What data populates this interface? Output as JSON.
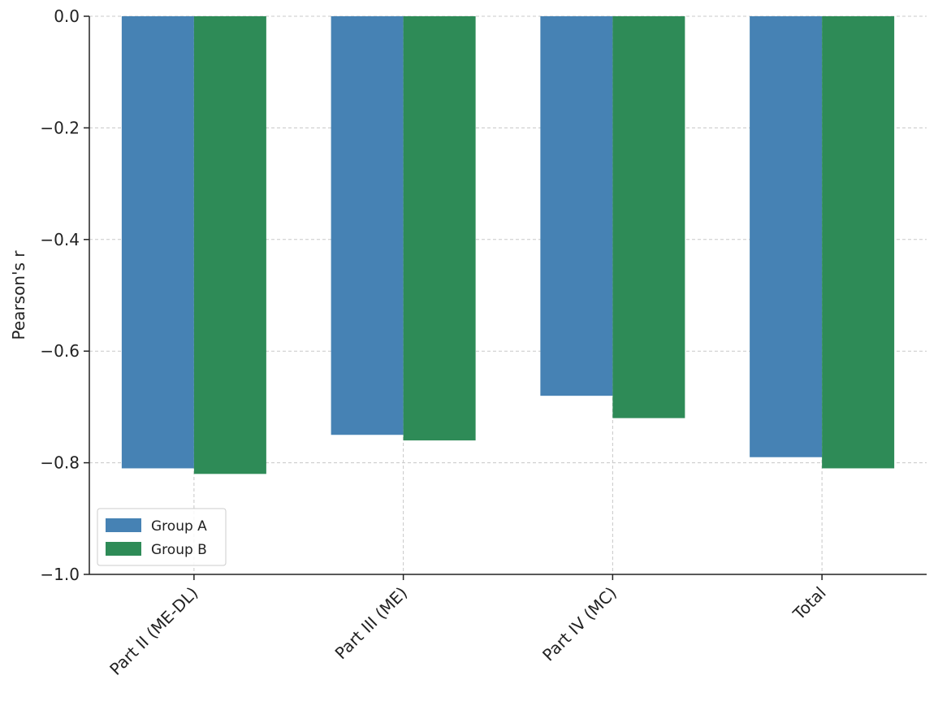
{
  "chart_data": {
    "type": "bar",
    "categories": [
      "Part II (ME-DL)",
      "Part III (ME)",
      "Part IV (MC)",
      "Total"
    ],
    "series": [
      {
        "name": "Group A",
        "values": [
          -0.81,
          -0.75,
          -0.68,
          -0.79
        ],
        "color": "#4682b4"
      },
      {
        "name": "Group B",
        "values": [
          -0.82,
          -0.76,
          -0.72,
          -0.81
        ],
        "color": "#2e8b57"
      }
    ],
    "title": "",
    "xlabel": "",
    "ylabel": "Pearson's r",
    "ylim": [
      -1.0,
      0.0
    ],
    "yticks": [
      0.0,
      -0.2,
      -0.4,
      -0.6,
      -0.8,
      -1.0
    ],
    "ytick_labels": [
      "0.0",
      "−0.2",
      "−0.4",
      "−0.6",
      "−0.8",
      "−1.0"
    ],
    "grid": true,
    "legend_position": "lower-left"
  }
}
